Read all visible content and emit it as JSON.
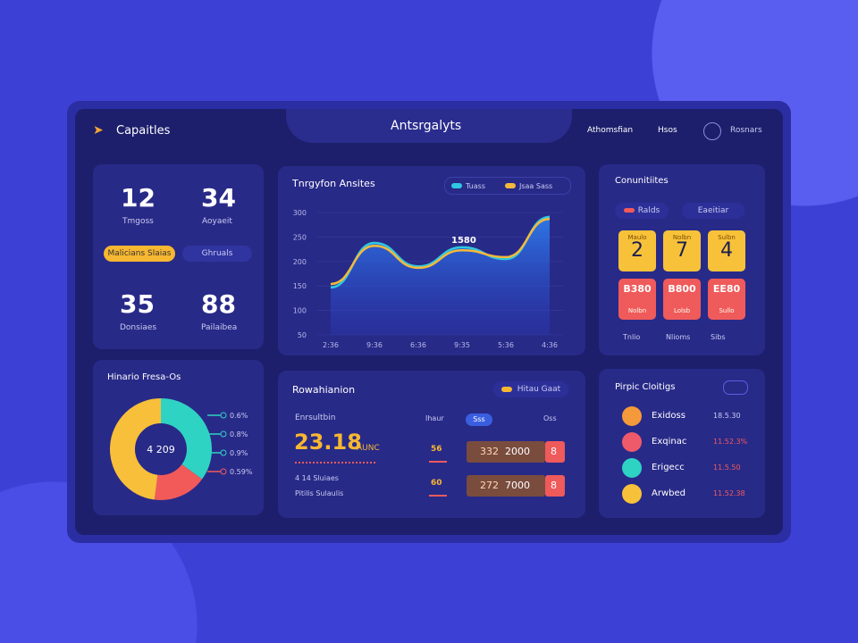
{
  "header": {
    "brand": "Capaitles",
    "title": "Antsrgalyts",
    "nav": [
      "Athomsfian",
      "Hsos"
    ],
    "user": "Rosnars"
  },
  "stats": {
    "items": [
      {
        "value": 12,
        "label": "Tmgoss"
      },
      {
        "value": 34,
        "label": "Aoyaeit"
      },
      {
        "value": 35,
        "label": "Donsiaes"
      },
      {
        "value": 88,
        "label": "Pailaibea"
      }
    ],
    "buttons": [
      "Malicians Slaias",
      "Ghruals"
    ]
  },
  "donut": {
    "title": "Hinario Fresa-Os",
    "center": "4 209",
    "values": [
      35,
      17,
      48
    ],
    "colors": [
      "#2fd3c4",
      "#f25a5a",
      "#f8bf3a"
    ],
    "legend": [
      {
        "label": "0.6%",
        "color": "#2fd3c4"
      },
      {
        "label": "0.8%",
        "color": "#2fd3c4"
      },
      {
        "label": "0.9%",
        "color": "#2fd3c4"
      },
      {
        "label": "0.59%",
        "color": "#f25a5a"
      }
    ]
  },
  "chart_data": {
    "type": "line",
    "title": "Tnrgyfon Ansites",
    "categories": [
      "2:36",
      "9:36",
      "6:36",
      "9:35",
      "5:36",
      "4:36"
    ],
    "series": [
      {
        "name": "Tuass",
        "color": "#2ec8e0",
        "values": [
          147,
          238,
          190,
          229,
          205,
          291
        ]
      },
      {
        "name": "Jsaa Sass",
        "color": "#f5b93a",
        "values": [
          154,
          232,
          187,
          223,
          209,
          287
        ]
      }
    ],
    "ylim": [
      50,
      300
    ],
    "yticks": [
      300,
      250,
      200,
      150,
      100,
      50
    ],
    "annotation": "1580"
  },
  "comms": {
    "title": "Conunitiites",
    "pills": [
      "Ralds",
      "Eaeitiar"
    ],
    "tiles": [
      {
        "caption": "Maulo",
        "value": "2"
      },
      {
        "caption": "Nolbn",
        "value": "7"
      },
      {
        "caption": "Sulbn",
        "value": "4"
      }
    ],
    "red_tiles": [
      {
        "value": "B380",
        "caption": "Nolbn"
      },
      {
        "value": "B800",
        "caption": "Lolsb"
      },
      {
        "value": "EE80",
        "caption": "Sullo"
      }
    ],
    "legend": [
      "Tnlio",
      "Nlioms",
      "Sibs"
    ]
  },
  "revenue": {
    "title": "Rowahianion",
    "pill": "Hitau Gaat",
    "label": "Enrsultbin",
    "amount": "23.18",
    "unit": "AUNC",
    "note": "4 14 Sluiaes",
    "sub": "Pitilis Sulaulis",
    "columns": [
      "Ihaur",
      "Sss",
      "Oss"
    ],
    "rows": [
      [
        "56",
        "332",
        "2000",
        "8"
      ],
      [
        "60",
        "272",
        "7000",
        "8"
      ]
    ]
  },
  "people": {
    "title": "Pirpic Cloitigs",
    "items": [
      {
        "name": "Exidoss",
        "value": "18.5.30"
      },
      {
        "name": "Exqinac",
        "value": "11.52.3%"
      },
      {
        "name": "Erigecc",
        "value": "11.5.50"
      },
      {
        "name": "Arwbed",
        "value": "11.52.38"
      }
    ]
  }
}
